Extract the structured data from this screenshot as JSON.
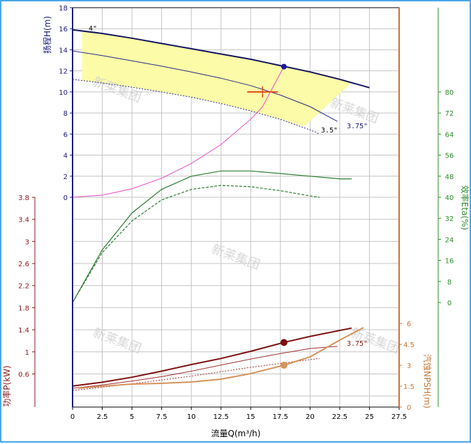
{
  "chart_data": {
    "type": "line",
    "xlabel": "流量Q(m³/h)",
    "x_ticks": [
      "0",
      "2.5",
      "5",
      "7.5",
      "10",
      "12.5",
      "15",
      "17.5",
      "20",
      "22.5",
      "25",
      "27.5"
    ],
    "xlim": [
      0,
      27.5
    ],
    "grid": true,
    "watermark": "新莱集团",
    "axes": {
      "head": {
        "label": "扬程H(m)",
        "range": [
          0,
          18
        ],
        "ticks": [
          "0",
          "2",
          "4",
          "6",
          "8",
          "10",
          "12",
          "14",
          "16",
          "18"
        ],
        "color": "#1a1a7a"
      },
      "efficiency": {
        "label": "效率Eta(%)",
        "range": [
          0,
          80
        ],
        "ticks": [
          "0",
          "8",
          "16",
          "24",
          "32",
          "40",
          "48",
          "56",
          "64",
          "72",
          "80"
        ],
        "color": "#2e8b2e"
      },
      "power": {
        "label": "功率P(kW)",
        "range": [
          0,
          3.8
        ],
        "ticks": [
          "0.6",
          "1",
          "1.4",
          "1.8",
          "2.2",
          "2.6",
          "3",
          "3.4",
          "3.8"
        ],
        "color": "#8b1a1a"
      },
      "npsh": {
        "label": "汽蚀NPSH(m)",
        "range": [
          0,
          6
        ],
        "ticks": [
          "0",
          "1.5",
          "3",
          "4.5",
          "6"
        ],
        "color": "#c87533"
      }
    },
    "head_series": [
      {
        "name": "4\"",
        "x": [
          0,
          2.5,
          5,
          7.5,
          10,
          12.5,
          15,
          17.5,
          20,
          22.5,
          25
        ],
        "y": [
          15.9,
          15.55,
          15.1,
          14.6,
          14.1,
          13.6,
          13.1,
          12.5,
          11.9,
          11.2,
          10.4
        ]
      },
      {
        "name": "3.75\"",
        "x": [
          0,
          2.5,
          5,
          7.5,
          10,
          12.5,
          15,
          17.5,
          20,
          22.3
        ],
        "y": [
          13.9,
          13.45,
          12.95,
          12.45,
          11.9,
          11.3,
          10.6,
          9.7,
          8.6,
          7.2
        ]
      },
      {
        "name": "3.5\"",
        "x": [
          0,
          2.5,
          5,
          7.5,
          10,
          12.5,
          15,
          17.5,
          20,
          20.8
        ],
        "y": [
          11.2,
          10.85,
          10.45,
          10.0,
          9.5,
          8.9,
          8.2,
          7.4,
          6.4,
          6.0
        ]
      }
    ],
    "system_curve": {
      "x": [
        0,
        2.5,
        5,
        7.5,
        10,
        12.5,
        15,
        16,
        17.8
      ],
      "y": [
        0,
        0.2,
        0.8,
        1.8,
        3.2,
        5.0,
        7.4,
        8.6,
        12.4
      ]
    },
    "duty_point": {
      "x": 17.8,
      "head": 12.4,
      "power": 1.17,
      "npsh": 3.0
    },
    "required_point": {
      "x": 16,
      "head": 10
    },
    "efficiency_series": [
      {
        "x": [
          0,
          2.5,
          5,
          7.5,
          10,
          12.5,
          15,
          17.5,
          20,
          22.5,
          23.5
        ],
        "y": [
          0,
          20,
          34,
          43,
          48,
          50,
          50,
          49,
          48,
          47,
          47
        ]
      },
      {
        "x": [
          0,
          2.5,
          5,
          7.5,
          10,
          12.5,
          15,
          17.5,
          20,
          20.8
        ],
        "y": [
          0,
          19,
          31,
          39,
          43,
          44.5,
          44,
          42.5,
          40.5,
          40
        ]
      }
    ],
    "power_series": [
      {
        "name": "4\"",
        "x": [
          0,
          2.5,
          5,
          7.5,
          10,
          12.5,
          15,
          17.8,
          20,
          23.5
        ],
        "y": [
          0.38,
          0.45,
          0.54,
          0.65,
          0.77,
          0.88,
          1.01,
          1.17,
          1.28,
          1.43
        ]
      },
      {
        "name": "3.75\"",
        "x": [
          0,
          2.5,
          5,
          7.5,
          10,
          12.5,
          15,
          17.5,
          20,
          22.3
        ],
        "y": [
          0.34,
          0.4,
          0.47,
          0.55,
          0.65,
          0.76,
          0.87,
          0.97,
          1.06,
          1.1
        ]
      },
      {
        "name": "3.5\"",
        "x": [
          0,
          2.5,
          5,
          7.5,
          10,
          12.5,
          15,
          17.5,
          20,
          20.8
        ],
        "y": [
          0.3,
          0.36,
          0.42,
          0.49,
          0.56,
          0.64,
          0.72,
          0.79,
          0.86,
          0.88
        ]
      }
    ],
    "npsh_series": [
      {
        "x": [
          0.5,
          2.5,
          5,
          7.5,
          10,
          12.5,
          15,
          17.8,
          20,
          22.5,
          24.5
        ],
        "y": [
          1.35,
          1.5,
          1.65,
          1.7,
          1.8,
          2.0,
          2.4,
          3.0,
          3.6,
          4.8,
          5.7
        ]
      }
    ],
    "annotations": [
      "4\"",
      "3.5\"",
      "3.75\"",
      "3.75\""
    ]
  }
}
